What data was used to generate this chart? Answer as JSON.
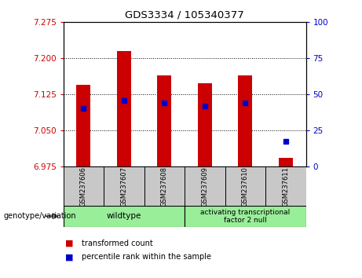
{
  "title": "GDS3334 / 105340377",
  "categories": [
    "GSM237606",
    "GSM237607",
    "GSM237608",
    "GSM237609",
    "GSM237610",
    "GSM237611"
  ],
  "red_values": [
    7.145,
    7.215,
    7.165,
    7.148,
    7.165,
    6.993
  ],
  "blue_values_left": [
    7.096,
    7.113,
    7.107,
    7.101,
    7.108,
    7.028
  ],
  "ylim_left": [
    6.975,
    7.275
  ],
  "ylim_right": [
    0,
    100
  ],
  "yticks_left": [
    6.975,
    7.05,
    7.125,
    7.2,
    7.275
  ],
  "yticks_right": [
    0,
    25,
    50,
    75,
    100
  ],
  "bar_bottom": 6.975,
  "bar_color": "#cc0000",
  "dot_color": "#0000cc",
  "wildtype_label": "wildtype",
  "atf2null_label": "activating transcriptional\nfactor 2 null",
  "genotype_label": "genotype/variation",
  "legend_red": "transformed count",
  "legend_blue": "percentile rank within the sample",
  "tick_color_left": "#cc0000",
  "tick_color_right": "#0000cc",
  "grid_lines": [
    7.05,
    7.125,
    7.2
  ],
  "group_color": "#99ee99"
}
